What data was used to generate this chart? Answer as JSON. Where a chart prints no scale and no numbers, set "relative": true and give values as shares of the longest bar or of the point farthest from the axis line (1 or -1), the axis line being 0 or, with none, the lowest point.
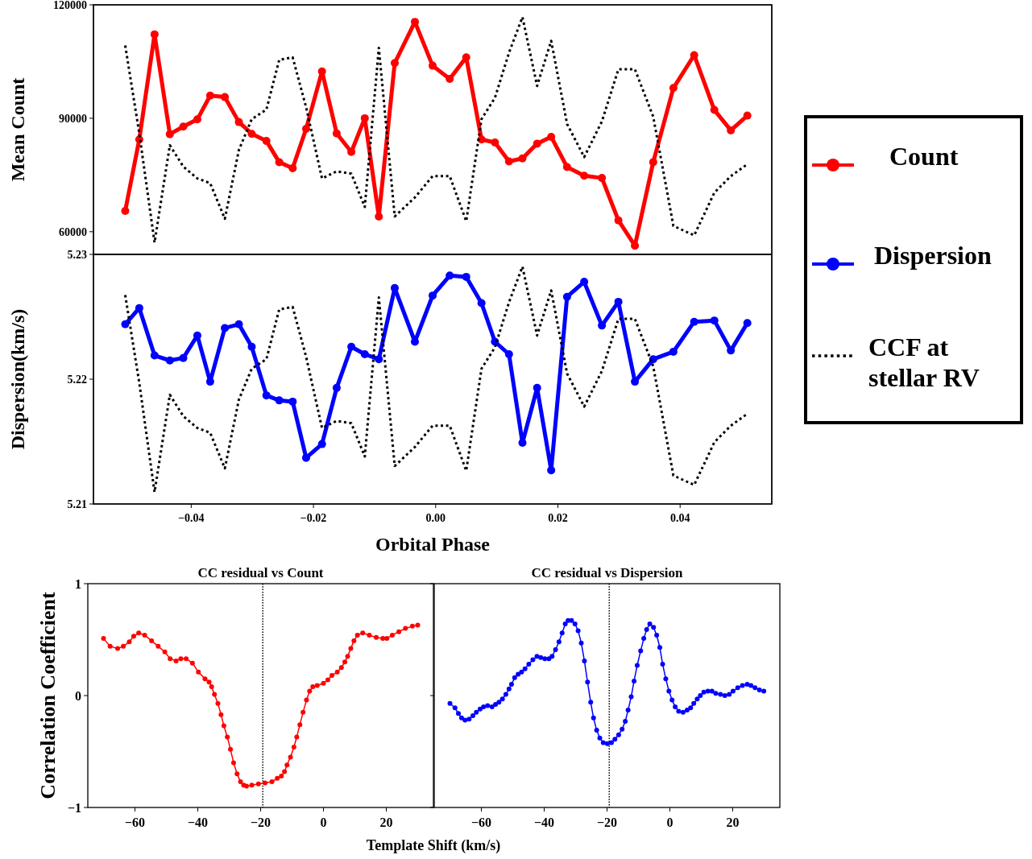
{
  "chart_data": [
    {
      "type": "line",
      "ylabel": "Mean Count",
      "xlim": [
        -0.056,
        0.055
      ],
      "ylim": [
        54000,
        120000
      ],
      "yticks": [
        60000,
        90000,
        120000
      ],
      "tick_labels": "y",
      "legend": "right",
      "marker": "circle",
      "x": [
        -0.0508,
        -0.0485,
        -0.046,
        -0.0435,
        -0.0413,
        -0.039,
        -0.0369,
        -0.0345,
        -0.0322,
        -0.0301,
        -0.0277,
        -0.0256,
        -0.0234,
        -0.0212,
        -0.0186,
        -0.0162,
        -0.0138,
        -0.0116,
        -0.0093,
        -0.0067,
        -0.0034,
        -0.0005,
        0.0023,
        0.005,
        0.0075,
        0.0097,
        0.012,
        0.0142,
        0.0166,
        0.0189,
        0.0215,
        0.0243,
        0.0272,
        0.0299,
        0.0326,
        0.0356,
        0.0389,
        0.0423,
        0.0456,
        0.0483,
        0.051
      ],
      "series": [
        {
          "name": "Count",
          "color": "#ff0000",
          "values": [
            65500,
            84400,
            112200,
            85800,
            87800,
            89700,
            96000,
            95600,
            89000,
            85900,
            84000,
            78400,
            76800,
            87200,
            102400,
            86000,
            81100,
            90000,
            64000,
            104600,
            115500,
            103900,
            100400,
            106100,
            84400,
            83600,
            78600,
            79400,
            83300,
            85100,
            77100,
            74800,
            74200,
            63000,
            56300,
            78400,
            98000,
            106700,
            92200,
            86800,
            90700
          ]
        }
      ]
    },
    {
      "type": "line",
      "xlabel": "Orbital Phase",
      "ylabel": "Dispersion(km/s)",
      "xlim": [
        -0.056,
        0.055
      ],
      "xticks": [
        {
          "value": -0.04,
          "label": "−0.04"
        },
        {
          "value": -0.02,
          "label": "−0.02"
        },
        {
          "value": 0,
          "label": "0.00"
        },
        {
          "value": 0.02,
          "label": "0.02"
        },
        {
          "value": 0.04,
          "label": "0.04"
        }
      ],
      "ylim": [
        5.21,
        5.23
      ],
      "yticks": [
        5.21,
        5.22,
        5.23
      ],
      "legend": "right",
      "marker": "circle",
      "x": [
        -0.0508,
        -0.0485,
        -0.046,
        -0.0435,
        -0.0413,
        -0.039,
        -0.0369,
        -0.0345,
        -0.0322,
        -0.0301,
        -0.0277,
        -0.0256,
        -0.0234,
        -0.0212,
        -0.0186,
        -0.0162,
        -0.0138,
        -0.0116,
        -0.0093,
        -0.0067,
        -0.0034,
        -0.0005,
        0.0023,
        0.005,
        0.0075,
        0.0097,
        0.012,
        0.0142,
        0.0166,
        0.0189,
        0.0215,
        0.0243,
        0.0272,
        0.0299,
        0.0326,
        0.0356,
        0.0389,
        0.0423,
        0.0456,
        0.0483,
        0.051
      ],
      "series": [
        {
          "name": "Dispersion",
          "color": "#0000ff",
          "values": [
            5.2244,
            5.2257,
            5.2219,
            5.2215,
            5.2217,
            5.2235,
            5.2198,
            5.2241,
            5.2244,
            5.2226,
            5.2187,
            5.2183,
            5.2182,
            5.2137,
            5.2148,
            5.2193,
            5.2226,
            5.222,
            5.2216,
            5.2273,
            5.223,
            5.2267,
            5.2283,
            5.2282,
            5.2261,
            5.223,
            5.222,
            5.2149,
            5.2193,
            5.2127,
            5.2266,
            5.2278,
            5.2243,
            5.2262,
            5.2198,
            5.2216,
            5.2222,
            5.2246,
            5.2247,
            5.2223,
            5.2245
          ]
        }
      ]
    },
    {
      "type": "line",
      "relative": true,
      "tick_labels": false,
      "xlim": [
        -0.056,
        0.055
      ],
      "marker": "none",
      "line_style": "dotted",
      "x": [
        -0.0508,
        -0.0485,
        -0.046,
        -0.0435,
        -0.0413,
        -0.039,
        -0.0369,
        -0.0345,
        -0.0322,
        -0.0301,
        -0.0277,
        -0.0256,
        -0.0234,
        -0.0212,
        -0.0186,
        -0.0162,
        -0.0138,
        -0.0116,
        -0.0093,
        -0.0067,
        -0.0034,
        -0.0005,
        0.0023,
        0.005,
        0.0075,
        0.0097,
        0.012,
        0.0142,
        0.0166,
        0.0189,
        0.0215,
        0.0243,
        0.0272,
        0.0299,
        0.0326,
        0.0356,
        0.0389,
        0.0423,
        0.0456,
        0.0483,
        0.051
      ],
      "series": [
        {
          "color": "#000000",
          "values": [
            0.88,
            0.51,
            0.05,
            0.46,
            0.37,
            0.32,
            0.3,
            0.15,
            0.44,
            0.57,
            0.61,
            0.82,
            0.83,
            0.62,
            0.32,
            0.35,
            0.34,
            0.2,
            0.87,
            0.16,
            0.24,
            0.33,
            0.33,
            0.14,
            0.57,
            0.66,
            0.85,
            1,
            0.71,
            0.9,
            0.55,
            0.41,
            0.56,
            0.78,
            0.78,
            0.58,
            0.12,
            0.08,
            0.26,
            0.33,
            0.38
          ]
        }
      ]
    },
    {
      "type": "line",
      "relative": true,
      "tick_labels": false,
      "xlim": [
        -0.056,
        0.055
      ],
      "marker": "none",
      "line_style": "dotted",
      "legend": "right",
      "x": [
        -0.0508,
        -0.0485,
        -0.046,
        -0.0435,
        -0.0413,
        -0.039,
        -0.0369,
        -0.0345,
        -0.0322,
        -0.0301,
        -0.0277,
        -0.0256,
        -0.0234,
        -0.0212,
        -0.0186,
        -0.0162,
        -0.0138,
        -0.0116,
        -0.0093,
        -0.0067,
        -0.0034,
        -0.0005,
        0.0023,
        0.005,
        0.0075,
        0.0097,
        0.012,
        0.0142,
        0.0166,
        0.0189,
        0.0215,
        0.0243,
        0.0272,
        0.0299,
        0.0326,
        0.0356,
        0.0389,
        0.0423,
        0.0456,
        0.0483,
        0.051
      ],
      "series": [
        {
          "name": "CCF at stellar RV",
          "color": "#000000",
          "values": [
            0.88,
            0.51,
            0.05,
            0.46,
            0.37,
            0.32,
            0.3,
            0.15,
            0.44,
            0.57,
            0.61,
            0.82,
            0.83,
            0.62,
            0.32,
            0.35,
            0.34,
            0.2,
            0.87,
            0.16,
            0.24,
            0.33,
            0.33,
            0.14,
            0.57,
            0.66,
            0.85,
            1,
            0.71,
            0.9,
            0.55,
            0.41,
            0.56,
            0.78,
            0.78,
            0.58,
            0.12,
            0.08,
            0.26,
            0.33,
            0.38
          ]
        }
      ]
    },
    {
      "type": "line",
      "title": "CC residual vs Count",
      "xlabel": "Template Shift (km/s)",
      "ylabel": "Correlation Coefficient",
      "xlim": [
        -75,
        35
      ],
      "xticks": [
        {
          "value": -60,
          "label": "−60"
        },
        {
          "value": -40,
          "label": "−40"
        },
        {
          "value": -20,
          "label": "−20"
        },
        {
          "value": 0,
          "label": "0"
        },
        {
          "value": 20,
          "label": "20"
        }
      ],
      "ylim": [
        -1,
        1
      ],
      "yticks": [
        {
          "value": -1,
          "label": "−1"
        },
        0,
        1
      ],
      "marker": "circle",
      "ref_lines": [
        {
          "axis": "x",
          "value": -19.3,
          "color": "#000000",
          "line_style": "dotted"
        }
      ],
      "series": [
        {
          "color": "#ff0000",
          "x": [
            -70,
            -67.9,
            -65.5,
            -63.7,
            -61.8,
            -60.4,
            -58.8,
            -56.9,
            -54.7,
            -52.6,
            -50.5,
            -48.8,
            -46.9,
            -45.4,
            -43.7,
            -41.7,
            -39.8,
            -37.7,
            -36.4,
            -35.6,
            -34.7,
            -33.6,
            -32.6,
            -31.7,
            -30.6,
            -29.6,
            -28.6,
            -27.5,
            -26.4,
            -25.4,
            -24.5,
            -22.8,
            -20.7,
            -18.6,
            -16.4,
            -14.7,
            -13.4,
            -12.4,
            -11.6,
            -10.5,
            -9.4,
            -8.5,
            -7.5,
            -6.5,
            -5.4,
            -4.4,
            -3.4,
            -2,
            0,
            1.4,
            2.7,
            4.4,
            5.7,
            6.8,
            7.7,
            8.7,
            9.7,
            10.8,
            12.5,
            14.6,
            16.8,
            18.9,
            20.2,
            21.9,
            24,
            26.1,
            28.3,
            30
          ],
          "values": [
            0.51,
            0.44,
            0.42,
            0.44,
            0.48,
            0.53,
            0.56,
            0.54,
            0.49,
            0.44,
            0.39,
            0.33,
            0.31,
            0.33,
            0.33,
            0.29,
            0.21,
            0.15,
            0.12,
            0.08,
            0.01,
            -0.07,
            -0.17,
            -0.27,
            -0.37,
            -0.48,
            -0.6,
            -0.7,
            -0.77,
            -0.8,
            -0.81,
            -0.8,
            -0.79,
            -0.78,
            -0.77,
            -0.74,
            -0.72,
            -0.68,
            -0.62,
            -0.55,
            -0.46,
            -0.37,
            -0.26,
            -0.15,
            -0.04,
            0.04,
            0.08,
            0.09,
            0.11,
            0.14,
            0.18,
            0.21,
            0.25,
            0.3,
            0.35,
            0.42,
            0.49,
            0.54,
            0.56,
            0.54,
            0.52,
            0.51,
            0.51,
            0.54,
            0.57,
            0.6,
            0.62,
            0.63
          ]
        }
      ]
    },
    {
      "type": "line",
      "title": "CC residual vs Dispersion",
      "xlim": [
        -75,
        35
      ],
      "xticks": [
        {
          "value": -60,
          "label": "−60"
        },
        {
          "value": -40,
          "label": "−40"
        },
        {
          "value": -20,
          "label": "−20"
        },
        {
          "value": 0,
          "label": "0"
        },
        {
          "value": 20,
          "label": "20"
        }
      ],
      "ylim": [
        -1,
        1
      ],
      "yticks": [
        -1,
        0,
        1
      ],
      "tick_labels": "x",
      "marker": "circle",
      "ref_lines": [
        {
          "axis": "x",
          "value": -19.3,
          "color": "#000000",
          "line_style": "dotted"
        }
      ],
      "series": [
        {
          "color": "#0000ff",
          "x": [
            -70,
            -68.4,
            -67.3,
            -66.3,
            -65.2,
            -63.9,
            -62.7,
            -61.6,
            -60.4,
            -59.3,
            -58,
            -56.6,
            -55.5,
            -54.4,
            -53.3,
            -52.2,
            -51.2,
            -50.4,
            -49.4,
            -48.3,
            -47.2,
            -46.1,
            -44.9,
            -43.6,
            -42.3,
            -41.1,
            -39.8,
            -38.5,
            -37.5,
            -36.4,
            -35.3,
            -34.3,
            -33.3,
            -32.4,
            -31.3,
            -30.2,
            -29.2,
            -28.2,
            -27.2,
            -26.2,
            -25.2,
            -24.3,
            -23.3,
            -22.3,
            -21.2,
            -19.9,
            -18.6,
            -17.5,
            -16.3,
            -15.2,
            -14.2,
            -13.3,
            -12.3,
            -11.4,
            -10.4,
            -9.3,
            -8.3,
            -7.4,
            -6.4,
            -5.2,
            -4.2,
            -3.2,
            -2.3,
            -1.3,
            -0.3,
            0.7,
            1.7,
            2.8,
            4.2,
            5.5,
            6.6,
            7.6,
            8.7,
            9.7,
            10.8,
            12.1,
            13.4,
            14.6,
            16.1,
            17.5,
            18.9,
            20.1,
            21.6,
            23.1,
            24.6,
            25.8,
            27.1,
            28.5,
            29.9
          ],
          "values": [
            -0.07,
            -0.11,
            -0.16,
            -0.2,
            -0.22,
            -0.21,
            -0.18,
            -0.15,
            -0.12,
            -0.1,
            -0.09,
            -0.1,
            -0.08,
            -0.06,
            -0.03,
            0.01,
            0.06,
            0.1,
            0.16,
            0.19,
            0.21,
            0.24,
            0.28,
            0.32,
            0.35,
            0.34,
            0.33,
            0.33,
            0.35,
            0.41,
            0.48,
            0.56,
            0.64,
            0.67,
            0.67,
            0.64,
            0.58,
            0.47,
            0.31,
            0.12,
            -0.06,
            -0.2,
            -0.31,
            -0.38,
            -0.42,
            -0.43,
            -0.42,
            -0.39,
            -0.35,
            -0.3,
            -0.23,
            -0.13,
            -0.01,
            0.13,
            0.27,
            0.4,
            0.51,
            0.59,
            0.64,
            0.61,
            0.54,
            0.43,
            0.28,
            0.15,
            0.04,
            -0.04,
            -0.1,
            -0.14,
            -0.15,
            -0.13,
            -0.11,
            -0.07,
            -0.03,
            0,
            0.03,
            0.04,
            0.04,
            0.02,
            0.01,
            0,
            0.01,
            0.04,
            0.07,
            0.09,
            0.1,
            0.09,
            0.07,
            0.05,
            0.04
          ]
        }
      ]
    }
  ]
}
